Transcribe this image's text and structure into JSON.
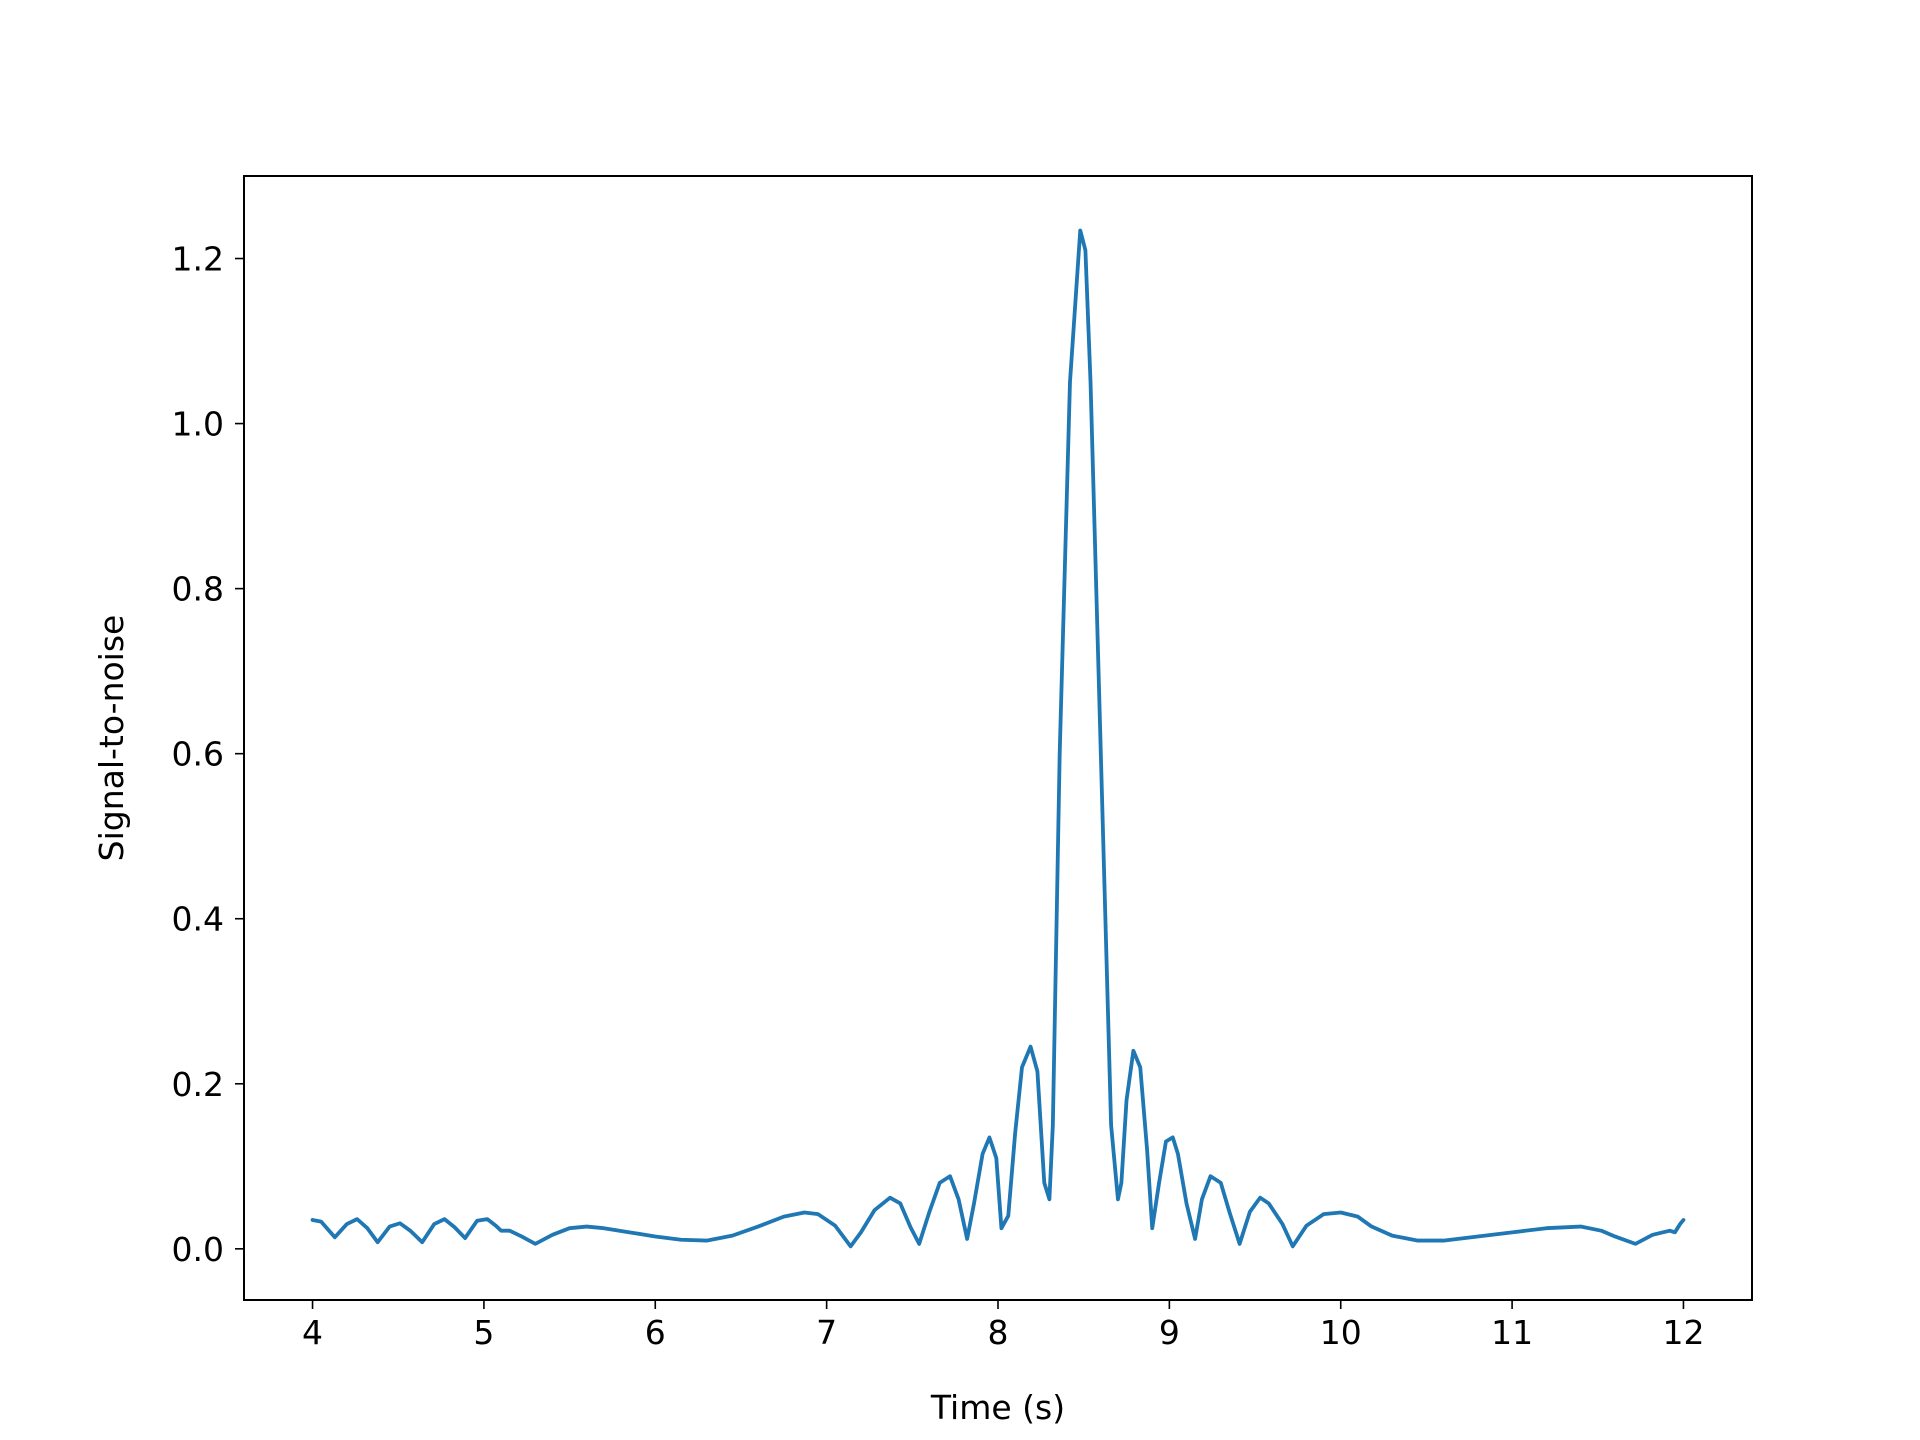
{
  "chart_data": {
    "type": "line",
    "title": "",
    "xlabel": "Time (s)",
    "ylabel": "Signal-to-noise",
    "xlim": [
      3.6,
      12.4
    ],
    "ylim": [
      -0.062,
      1.3
    ],
    "xticks": [
      4,
      5,
      6,
      7,
      8,
      9,
      10,
      11,
      12
    ],
    "xtick_labels": [
      "4",
      "5",
      "6",
      "7",
      "8",
      "9",
      "10",
      "11",
      "12"
    ],
    "yticks": [
      0.0,
      0.2,
      0.4,
      0.6,
      0.8,
      1.0,
      1.2
    ],
    "ytick_labels": [
      "0.0",
      "0.2",
      "0.4",
      "0.6",
      "0.8",
      "1.0",
      "1.2"
    ],
    "grid": false,
    "legend": "none",
    "series": [
      {
        "color": "#1f77b4",
        "x": [
          4.0,
          4.05,
          4.13,
          4.2,
          4.26,
          4.32,
          4.38,
          4.45,
          4.51,
          4.57,
          4.64,
          4.71,
          4.77,
          4.83,
          4.89,
          4.96,
          5.02,
          5.07,
          5.1,
          5.15,
          5.22,
          5.3,
          5.4,
          5.5,
          5.6,
          5.7,
          5.85,
          6.0,
          6.15,
          6.3,
          6.45,
          6.6,
          6.75,
          6.87,
          6.95,
          7.05,
          7.14,
          7.2,
          7.28,
          7.37,
          7.43,
          7.49,
          7.54,
          7.6,
          7.66,
          7.72,
          7.77,
          7.82,
          7.86,
          7.91,
          7.95,
          7.99,
          8.02,
          8.06,
          8.1,
          8.14,
          8.19,
          8.23,
          8.27,
          8.3,
          8.32,
          8.36,
          8.42,
          8.48,
          8.51,
          8.54,
          8.6,
          8.66,
          8.7,
          8.72,
          8.75,
          8.79,
          8.83,
          8.87,
          8.9,
          8.94,
          8.98,
          9.02,
          9.05,
          9.1,
          9.15,
          9.19,
          9.24,
          9.3,
          9.35,
          9.41,
          9.47,
          9.53,
          9.58,
          9.66,
          9.72,
          9.8,
          9.9,
          10.0,
          10.1,
          10.18,
          10.3,
          10.45,
          10.6,
          10.8,
          11.0,
          11.2,
          11.4,
          11.52,
          11.6,
          11.72,
          11.82,
          11.92,
          11.95,
          11.98,
          12.0
        ],
        "y": [
          0.035,
          0.033,
          0.014,
          0.03,
          0.036,
          0.025,
          0.008,
          0.027,
          0.031,
          0.022,
          0.008,
          0.03,
          0.036,
          0.026,
          0.013,
          0.034,
          0.036,
          0.028,
          0.022,
          0.022,
          0.015,
          0.006,
          0.017,
          0.025,
          0.027,
          0.025,
          0.02,
          0.015,
          0.011,
          0.01,
          0.016,
          0.027,
          0.039,
          0.044,
          0.042,
          0.028,
          0.003,
          0.02,
          0.047,
          0.062,
          0.055,
          0.026,
          0.006,
          0.045,
          0.08,
          0.088,
          0.06,
          0.012,
          0.055,
          0.115,
          0.135,
          0.11,
          0.025,
          0.04,
          0.14,
          0.22,
          0.245,
          0.215,
          0.08,
          0.06,
          0.15,
          0.6,
          1.05,
          1.234,
          1.21,
          1.05,
          0.6,
          0.15,
          0.06,
          0.08,
          0.18,
          0.24,
          0.22,
          0.12,
          0.025,
          0.08,
          0.13,
          0.135,
          0.115,
          0.055,
          0.012,
          0.06,
          0.088,
          0.08,
          0.045,
          0.006,
          0.045,
          0.062,
          0.055,
          0.03,
          0.003,
          0.028,
          0.042,
          0.044,
          0.039,
          0.027,
          0.016,
          0.01,
          0.01,
          0.015,
          0.02,
          0.025,
          0.027,
          0.022,
          0.015,
          0.006,
          0.017,
          0.022,
          0.02,
          0.03,
          0.035
        ]
      }
    ]
  }
}
